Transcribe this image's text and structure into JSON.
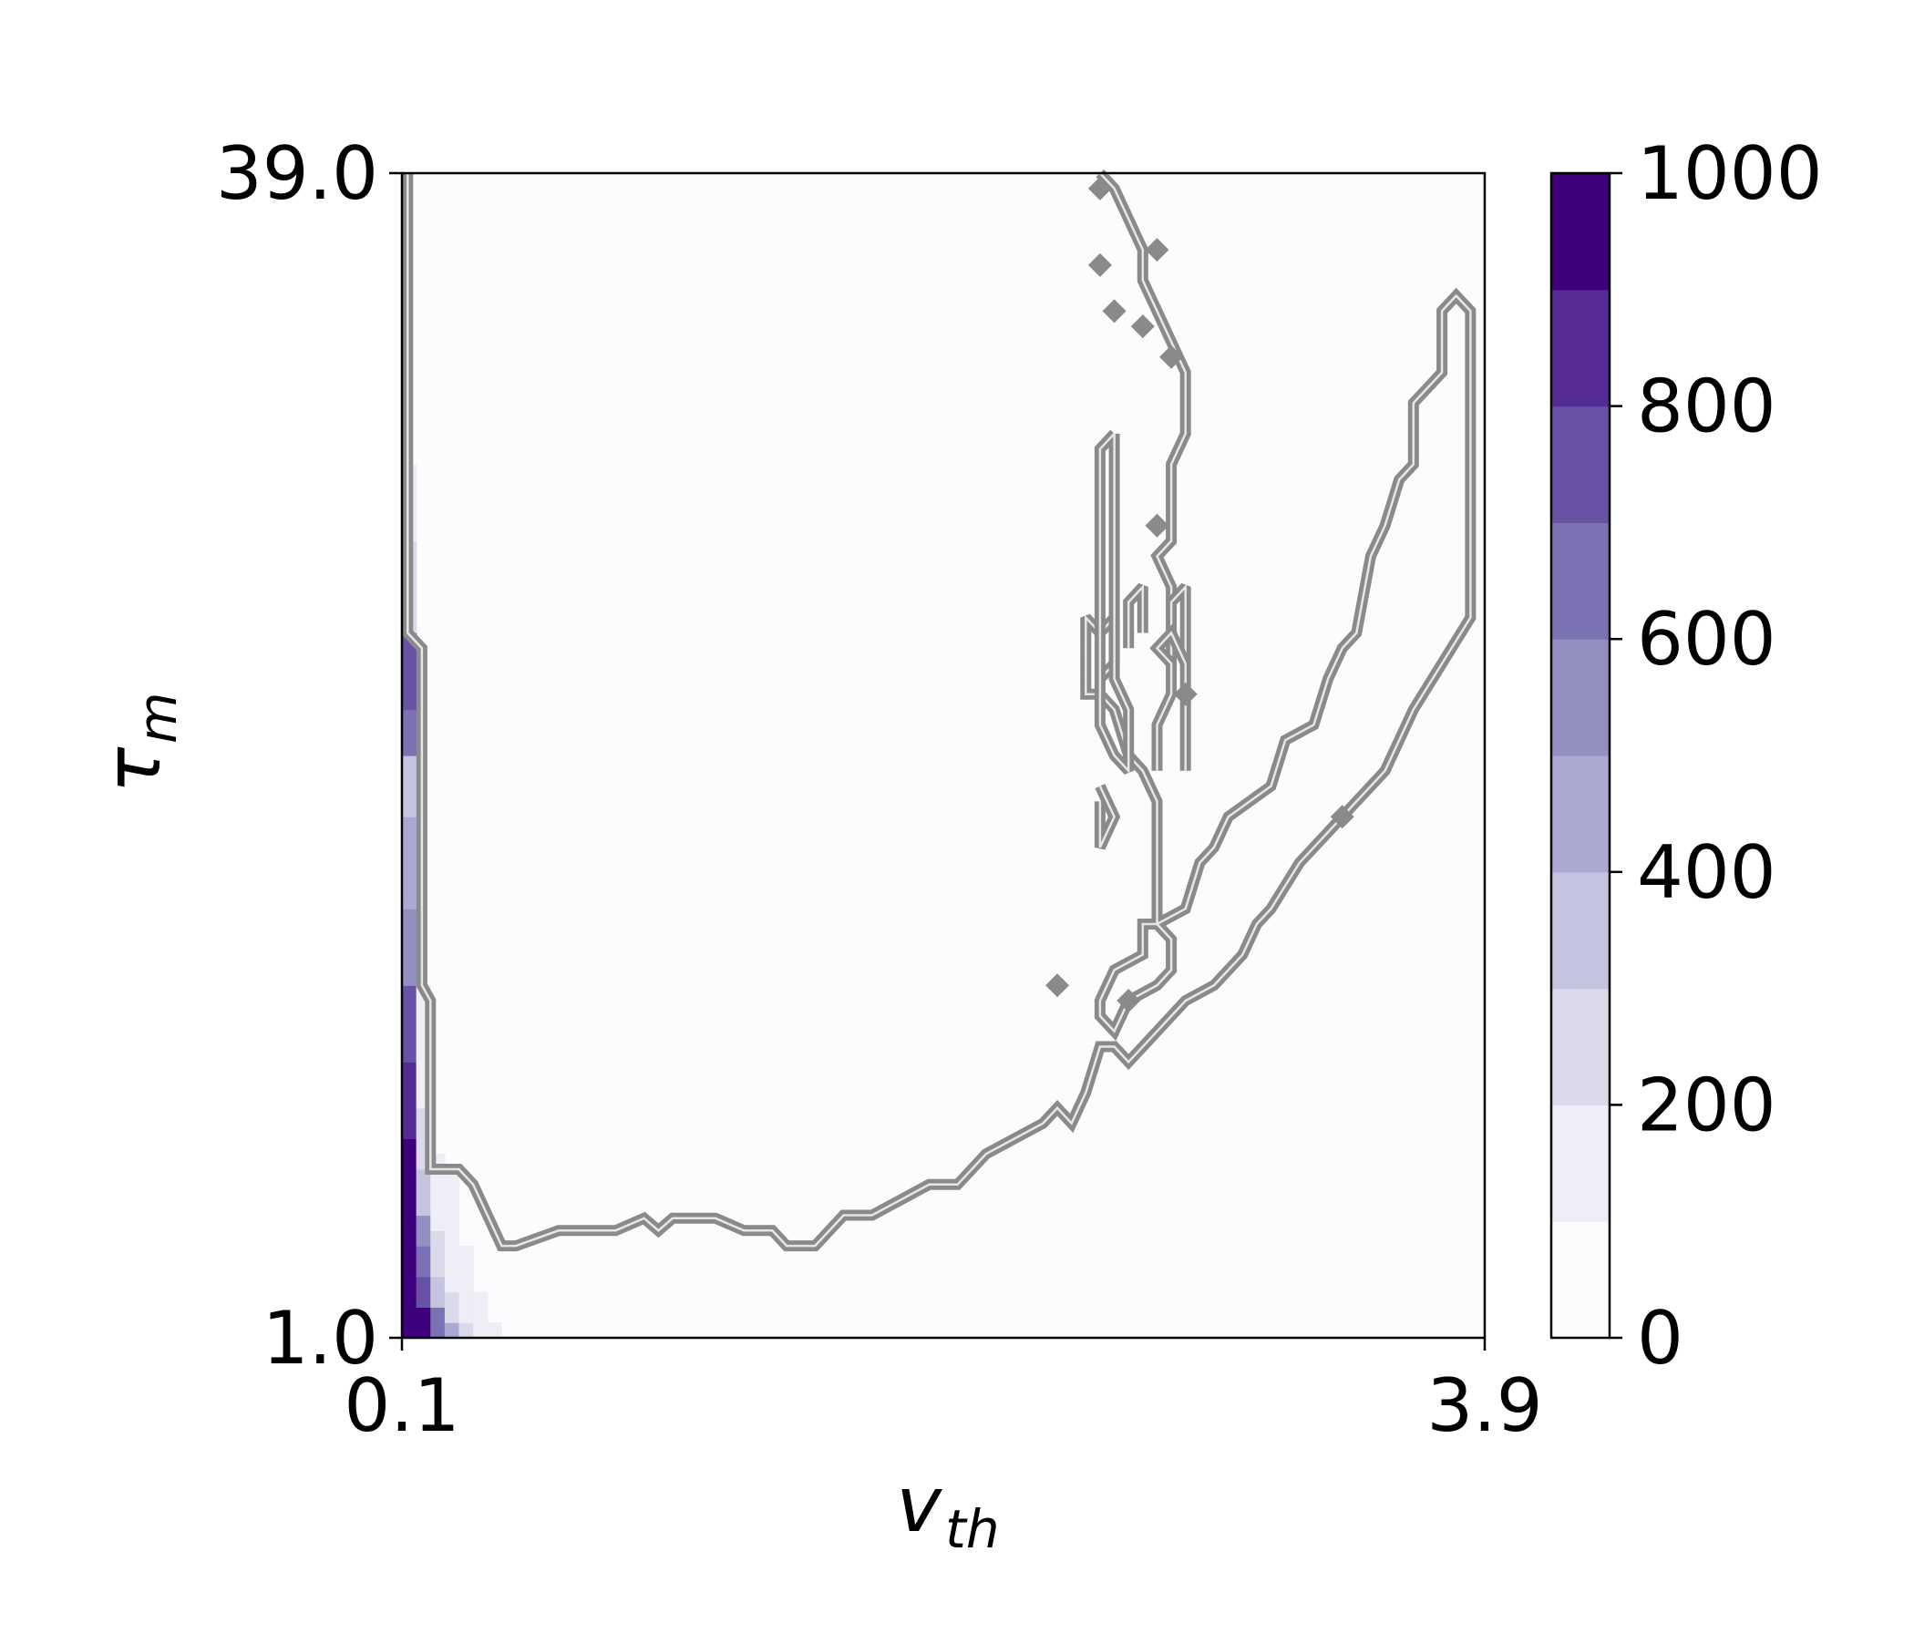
{
  "chart_data": {
    "type": "heatmap",
    "title": "",
    "x_axis": {
      "label_main": "v",
      "label_sub": "th",
      "range": [
        0.1,
        3.9
      ],
      "tick_labels": [
        "0.1",
        "3.9"
      ]
    },
    "y_axis": {
      "label_main": "τ",
      "label_sub": "m",
      "range": [
        1.0,
        39.0
      ],
      "tick_labels": [
        "39.0",
        "1.0"
      ]
    },
    "colorbar": {
      "range": [
        0,
        1000
      ],
      "levels": [
        0,
        100,
        200,
        300,
        400,
        500,
        600,
        700,
        800,
        900,
        1000
      ],
      "tick_values": [
        0,
        200,
        400,
        600,
        800,
        1000
      ],
      "tick_labels": [
        "0",
        "200",
        "400",
        "600",
        "800",
        "1000"
      ],
      "colors": [
        "#fcfbfd",
        "#efedf5",
        "#dadaeb",
        "#c4c4e0",
        "#aba9d1",
        "#9390c1",
        "#7b72b4",
        "#6752a5",
        "#552c94",
        "#3f007d"
      ]
    },
    "heat_cells": [
      {
        "x": [
          0.1,
          0.15
        ],
        "y": [
          1.0,
          2.5
        ],
        "value": 980
      },
      {
        "x": [
          0.1,
          0.15
        ],
        "y": [
          2.5,
          5.0
        ],
        "value": 950
      },
      {
        "x": [
          0.1,
          0.15
        ],
        "y": [
          5.0,
          7.5
        ],
        "value": 920
      },
      {
        "x": [
          0.1,
          0.15
        ],
        "y": [
          7.5,
          10.0
        ],
        "value": 880
      },
      {
        "x": [
          0.1,
          0.15
        ],
        "y": [
          10.0,
          12.5
        ],
        "value": 720
      },
      {
        "x": [
          0.1,
          0.15
        ],
        "y": [
          12.5,
          15.0
        ],
        "value": 580
      },
      {
        "x": [
          0.1,
          0.15
        ],
        "y": [
          15.0,
          18.0
        ],
        "value": 420
      },
      {
        "x": [
          0.1,
          0.15
        ],
        "y": [
          18.0,
          20.0
        ],
        "value": 330
      },
      {
        "x": [
          0.1,
          0.15
        ],
        "y": [
          20.0,
          21.5
        ],
        "value": 640
      },
      {
        "x": [
          0.1,
          0.15
        ],
        "y": [
          21.5,
          24.0
        ],
        "value": 760
      },
      {
        "x": [
          0.1,
          0.15
        ],
        "y": [
          24.0,
          27.0
        ],
        "value": 260
      },
      {
        "x": [
          0.1,
          0.15
        ],
        "y": [
          27.0,
          29.5
        ],
        "value": 120
      },
      {
        "x": [
          0.15,
          0.2
        ],
        "y": [
          1.0,
          2.0
        ],
        "value": 920
      },
      {
        "x": [
          0.15,
          0.2
        ],
        "y": [
          2.0,
          3.0
        ],
        "value": 780
      },
      {
        "x": [
          0.15,
          0.2
        ],
        "y": [
          3.0,
          4.0
        ],
        "value": 650
      },
      {
        "x": [
          0.15,
          0.2
        ],
        "y": [
          4.0,
          5.0
        ],
        "value": 520
      },
      {
        "x": [
          0.15,
          0.2
        ],
        "y": [
          5.0,
          6.5
        ],
        "value": 330
      },
      {
        "x": [
          0.15,
          0.2
        ],
        "y": [
          6.5,
          8.5
        ],
        "value": 200
      },
      {
        "x": [
          0.15,
          0.2
        ],
        "y": [
          8.5,
          12.5
        ],
        "value": 120
      },
      {
        "x": [
          0.2,
          0.25
        ],
        "y": [
          1.0,
          2.0
        ],
        "value": 620
      },
      {
        "x": [
          0.2,
          0.25
        ],
        "y": [
          2.0,
          3.0
        ],
        "value": 380
      },
      {
        "x": [
          0.2,
          0.25
        ],
        "y": [
          3.0,
          4.5
        ],
        "value": 230
      },
      {
        "x": [
          0.2,
          0.25
        ],
        "y": [
          4.5,
          7.0
        ],
        "value": 140
      },
      {
        "x": [
          0.25,
          0.3
        ],
        "y": [
          1.0,
          1.5
        ],
        "value": 420
      },
      {
        "x": [
          0.25,
          0.3
        ],
        "y": [
          1.5,
          2.5
        ],
        "value": 250
      },
      {
        "x": [
          0.25,
          0.3
        ],
        "y": [
          2.5,
          6.5
        ],
        "value": 140
      },
      {
        "x": [
          0.3,
          0.35
        ],
        "y": [
          1.0,
          1.5
        ],
        "value": 250
      },
      {
        "x": [
          0.3,
          0.35
        ],
        "y": [
          1.5,
          4.0
        ],
        "value": 140
      },
      {
        "x": [
          0.35,
          0.4
        ],
        "y": [
          1.0,
          2.5
        ],
        "value": 130
      },
      {
        "x": [
          0.4,
          0.45
        ],
        "y": [
          1.0,
          1.5
        ],
        "value": 120
      }
    ],
    "contours": [
      {
        "points": [
          [
            0.12,
            39.0
          ],
          [
            0.12,
            24.0
          ],
          [
            0.17,
            23.5
          ],
          [
            0.17,
            12.5
          ],
          [
            0.2,
            12.0
          ],
          [
            0.2,
            6.5
          ],
          [
            0.3,
            6.5
          ],
          [
            0.35,
            6.0
          ],
          [
            0.4,
            5.0
          ],
          [
            0.45,
            4.0
          ],
          [
            0.5,
            4.0
          ],
          [
            0.65,
            4.5
          ],
          [
            0.85,
            4.5
          ],
          [
            0.95,
            4.9
          ],
          [
            1.0,
            4.5
          ],
          [
            1.05,
            4.9
          ],
          [
            1.2,
            4.9
          ],
          [
            1.3,
            4.5
          ],
          [
            1.4,
            4.5
          ],
          [
            1.45,
            4.0
          ],
          [
            1.55,
            4.0
          ],
          [
            1.65,
            5.0
          ],
          [
            1.75,
            5.0
          ],
          [
            1.85,
            5.5
          ],
          [
            1.95,
            6.0
          ],
          [
            2.05,
            6.0
          ],
          [
            2.15,
            7.0
          ],
          [
            2.25,
            7.5
          ],
          [
            2.35,
            8.0
          ],
          [
            2.4,
            8.5
          ],
          [
            2.45,
            8.0
          ],
          [
            2.5,
            9.0
          ],
          [
            2.55,
            10.5
          ],
          [
            2.6,
            10.5
          ],
          [
            2.65,
            10.0
          ],
          [
            2.85,
            12.0
          ],
          [
            2.95,
            12.5
          ],
          [
            3.05,
            13.5
          ],
          [
            3.1,
            14.5
          ],
          [
            3.15,
            15.0
          ],
          [
            3.25,
            16.5
          ],
          [
            3.35,
            17.5
          ],
          [
            3.45,
            18.5
          ],
          [
            3.55,
            19.5
          ],
          [
            3.65,
            21.5
          ],
          [
            3.75,
            23.0
          ],
          [
            3.85,
            24.5
          ],
          [
            3.85,
            34.5
          ],
          [
            3.8,
            35.0
          ],
          [
            3.75,
            34.5
          ],
          [
            3.75,
            32.5
          ],
          [
            3.7,
            32.0
          ],
          [
            3.65,
            31.5
          ],
          [
            3.65,
            29.5
          ],
          [
            3.6,
            29.0
          ],
          [
            3.55,
            27.5
          ],
          [
            3.5,
            26.5
          ],
          [
            3.45,
            24.0
          ],
          [
            3.4,
            23.5
          ],
          [
            3.35,
            22.5
          ],
          [
            3.3,
            21.0
          ],
          [
            3.2,
            20.5
          ],
          [
            3.15,
            19.0
          ],
          [
            3.0,
            18.0
          ],
          [
            2.95,
            17.0
          ],
          [
            2.9,
            16.5
          ],
          [
            2.85,
            15.0
          ],
          [
            2.75,
            14.5
          ],
          [
            2.7,
            14.5
          ],
          [
            2.7,
            13.5
          ],
          [
            2.6,
            13.0
          ],
          [
            2.55,
            12.0
          ],
          [
            2.55,
            11.5
          ],
          [
            2.6,
            11.0
          ],
          [
            2.65,
            12.0
          ],
          [
            2.75,
            12.5
          ],
          [
            2.8,
            13.0
          ],
          [
            2.8,
            14.0
          ],
          [
            2.75,
            14.5
          ],
          [
            2.75,
            18.5
          ],
          [
            2.7,
            19.5
          ],
          [
            2.65,
            20.0
          ],
          [
            2.6,
            21.5
          ],
          [
            2.55,
            22.0
          ],
          [
            2.5,
            22.0
          ],
          [
            2.5,
            24.5
          ],
          [
            2.55,
            24.0
          ],
          [
            2.6,
            24.5
          ],
          [
            2.6,
            23.0
          ],
          [
            2.55,
            22.5
          ]
        ]
      },
      {
        "points": [
          [
            2.55,
            39.0
          ],
          [
            2.6,
            38.5
          ],
          [
            2.65,
            37.5
          ],
          [
            2.7,
            36.5
          ],
          [
            2.7,
            35.5
          ],
          [
            2.75,
            34.5
          ],
          [
            2.8,
            33.5
          ],
          [
            2.85,
            32.5
          ],
          [
            2.85,
            30.5
          ],
          [
            2.8,
            29.5
          ],
          [
            2.8,
            27.0
          ],
          [
            2.75,
            26.5
          ],
          [
            2.8,
            25.5
          ],
          [
            2.8,
            22.0
          ],
          [
            2.75,
            21.0
          ],
          [
            2.75,
            19.5
          ]
        ]
      },
      {
        "points": [
          [
            2.8,
            25.0
          ],
          [
            2.85,
            25.5
          ],
          [
            2.85,
            19.5
          ]
        ]
      },
      {
        "points": [
          [
            2.8,
            23.0
          ],
          [
            2.75,
            23.5
          ],
          [
            2.8,
            24.0
          ],
          [
            2.85,
            23.0
          ]
        ]
      },
      {
        "points": [
          [
            2.6,
            30.5
          ],
          [
            2.55,
            30.0
          ],
          [
            2.55,
            21.0
          ],
          [
            2.6,
            20.0
          ],
          [
            2.65,
            19.5
          ],
          [
            2.65,
            21.5
          ],
          [
            2.6,
            22.5
          ],
          [
            2.6,
            30.5
          ]
        ]
      },
      {
        "points": [
          [
            2.65,
            23.5
          ],
          [
            2.65,
            25.0
          ],
          [
            2.7,
            25.5
          ],
          [
            2.7,
            24.0
          ]
        ]
      },
      {
        "points": [
          [
            2.55,
            19.0
          ],
          [
            2.6,
            18.0
          ],
          [
            2.55,
            17.0
          ],
          [
            2.55,
            18.5
          ]
        ]
      }
    ],
    "markers": [
      {
        "x": 2.55,
        "y": 38.5
      },
      {
        "x": 2.55,
        "y": 36.0
      },
      {
        "x": 2.6,
        "y": 34.5
      },
      {
        "x": 2.75,
        "y": 36.5
      },
      {
        "x": 2.7,
        "y": 34.0
      },
      {
        "x": 2.8,
        "y": 33.0
      },
      {
        "x": 2.75,
        "y": 27.5
      },
      {
        "x": 2.85,
        "y": 22.0
      },
      {
        "x": 3.4,
        "y": 18.0
      },
      {
        "x": 2.4,
        "y": 12.5
      },
      {
        "x": 2.65,
        "y": 12.0
      }
    ]
  }
}
